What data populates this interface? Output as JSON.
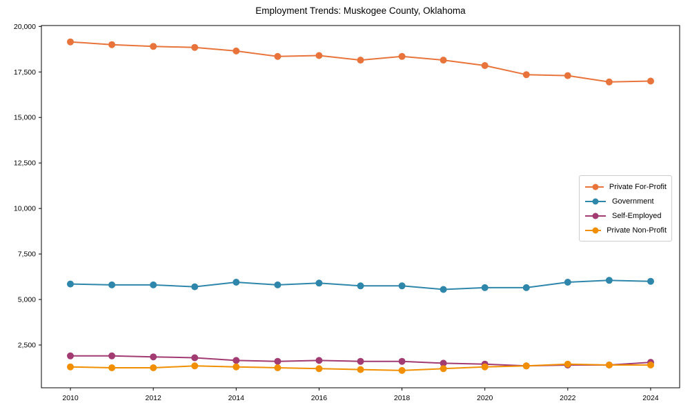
{
  "title": "Employment Trends: Muskogee County, Oklahoma",
  "chart_data": {
    "type": "line",
    "title": "Employment Trends: Muskogee County, Oklahoma",
    "xlabel": "",
    "ylabel": "",
    "x": [
      2010,
      2011,
      2012,
      2013,
      2014,
      2015,
      2016,
      2017,
      2018,
      2019,
      2020,
      2021,
      2022,
      2023,
      2024
    ],
    "series": [
      {
        "name": "Private For-Profit",
        "color": "#E8743B",
        "values": [
          19150,
          19000,
          18900,
          18850,
          18650,
          18350,
          18400,
          18150,
          18350,
          18150,
          17850,
          17350,
          17300,
          16950,
          17000
        ]
      },
      {
        "name": "Government",
        "color": "#2E86AB",
        "values": [
          5850,
          5800,
          5800,
          5700,
          5950,
          5800,
          5900,
          5750,
          5750,
          5550,
          5650,
          5650,
          5950,
          6050,
          6000
        ]
      },
      {
        "name": "Self-Employed",
        "color": "#A23B72",
        "values": [
          1900,
          1900,
          1850,
          1800,
          1650,
          1600,
          1650,
          1600,
          1600,
          1500,
          1450,
          1350,
          1400,
          1400,
          1550
        ]
      },
      {
        "name": "Private Non-Profit",
        "color": "#F18F01",
        "values": [
          1300,
          1250,
          1250,
          1350,
          1300,
          1250,
          1200,
          1150,
          1100,
          1200,
          1300,
          1350,
          1450,
          1400,
          1400
        ]
      }
    ],
    "xticks": [
      2010,
      2012,
      2014,
      2016,
      2018,
      2020,
      2022,
      2024
    ],
    "yticks": [
      2500,
      5000,
      7500,
      10000,
      12500,
      15000,
      17500,
      20000
    ],
    "ytick_label_format": "thousands-comma",
    "xlim": [
      2009.3,
      2024.7
    ],
    "ylim": [
      150,
      20050
    ],
    "grid": false,
    "marker": "circle",
    "marker_size": 5,
    "line_width": 2,
    "legend_position": "center-right",
    "axis_color": "#000000"
  }
}
